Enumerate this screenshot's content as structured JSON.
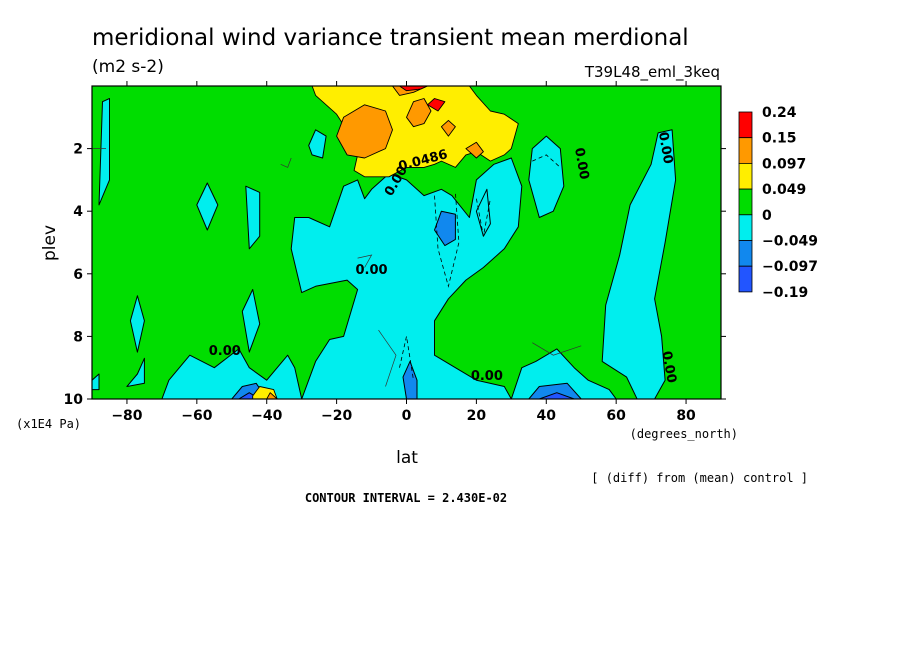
{
  "chart_data": {
    "type": "heatmap",
    "title": "meridional wind variance transient mean merdional",
    "units": "(m2 s-2)",
    "run": "T39L48_eml_3keq",
    "xlabel": "lat",
    "xunits": "(degrees_north)",
    "ylabel": "plev",
    "yunits": "(x1E4 Pa)",
    "xlim": [
      -90,
      90
    ],
    "ylim": [
      10,
      0
    ],
    "xticks": [
      -80,
      -60,
      -40,
      -20,
      0,
      20,
      40,
      60,
      80
    ],
    "xtick_labels": [
      "−80",
      "−60",
      "−40",
      "−20",
      "0",
      "20",
      "40",
      "60",
      "80"
    ],
    "yticks": [
      2,
      4,
      6,
      8,
      10
    ],
    "ytick_labels": [
      "2",
      "4",
      "6",
      "8",
      "10"
    ],
    "diff_note": "[ (diff) from (mean) control ]",
    "contour_interval": "CONTOUR INTERVAL = 2.430E-02",
    "colorbar": {
      "labels": [
        "0.24",
        "0.15",
        "0.097",
        "0.049",
        "0",
        "−0.049",
        "−0.097",
        "−0.19"
      ],
      "colors": [
        "#ff0000",
        "#ff9900",
        "#ffee00",
        "#00dd00",
        "#00eeee",
        "#1188ee",
        "#2255ff"
      ]
    },
    "colors": {
      "background_field": "#00dd00",
      "neg1": "#00eeee",
      "neg2": "#1188ee",
      "neg3": "#2255ff",
      "pos1": "#ffee00",
      "pos2": "#ff9900",
      "pos3": "#ff0000"
    },
    "contour_labels": [
      {
        "text": "0.0486",
        "lat": 5,
        "p": 2.5,
        "angle": -15
      },
      {
        "text": "0.00",
        "lat": -2,
        "p": 3.1,
        "angle": -60
      },
      {
        "text": "0.00",
        "lat": -10,
        "p": 6.0,
        "angle": 0
      },
      {
        "text": "0.00",
        "lat": -52,
        "p": 8.6,
        "angle": 0
      },
      {
        "text": "0.00",
        "lat": 23,
        "p": 9.4,
        "angle": 0
      },
      {
        "text": "0.00",
        "lat": 49,
        "p": 2.5,
        "angle": 80
      },
      {
        "text": "0.00",
        "lat": 73,
        "p": 2.0,
        "angle": 80
      },
      {
        "text": "0.00",
        "lat": 74,
        "p": 9.0,
        "angle": 80
      }
    ],
    "regions": {
      "neg1": [
        [
          [
            -88,
            3.8
          ],
          [
            -87,
            0.5
          ],
          [
            -85,
            0.4
          ],
          [
            -85,
            3.0
          ]
        ],
        [
          [
            -57,
            4.6
          ],
          [
            -60,
            3.8
          ],
          [
            -57,
            3.1
          ],
          [
            -54,
            3.8
          ]
        ],
        [
          [
            -45,
            5.2
          ],
          [
            -46,
            3.2
          ],
          [
            -42,
            3.4
          ],
          [
            -42,
            4.8
          ]
        ],
        [
          [
            -28,
            1.9
          ],
          [
            -27,
            2.2
          ],
          [
            -24,
            2.3
          ],
          [
            -23,
            1.6
          ],
          [
            -26,
            1.4
          ]
        ],
        [
          [
            -77,
            8.5
          ],
          [
            -79,
            7.5
          ],
          [
            -77,
            6.7
          ],
          [
            -75,
            7.5
          ]
        ],
        [
          [
            -45,
            8.5
          ],
          [
            -47,
            7.2
          ],
          [
            -44,
            6.5
          ],
          [
            -42,
            7.6
          ]
        ],
        [
          [
            -77,
            9.2
          ],
          [
            -75,
            8.7
          ],
          [
            -75,
            9.5
          ],
          [
            -80,
            9.6
          ]
        ],
        [
          [
            -70,
            10
          ],
          [
            -68,
            9.4
          ],
          [
            -62,
            8.6
          ],
          [
            -55,
            9.0
          ],
          [
            -48,
            8.4
          ],
          [
            -45,
            9.0
          ],
          [
            -40,
            9.4
          ],
          [
            -34,
            8.6
          ],
          [
            -32,
            9.0
          ],
          [
            -30,
            10
          ]
        ],
        [
          [
            -90,
            9.4
          ],
          [
            -88,
            9.2
          ],
          [
            -88,
            9.7
          ],
          [
            -90,
            9.7
          ]
        ],
        [
          [
            -30,
            10
          ],
          [
            -26,
            8.8
          ],
          [
            -22,
            8.1
          ],
          [
            -18,
            8.0
          ],
          [
            -14,
            6.5
          ],
          [
            -17,
            6.2
          ],
          [
            -26,
            6.4
          ],
          [
            -30,
            6.6
          ],
          [
            -33,
            5.2
          ],
          [
            -32,
            4.2
          ],
          [
            -28,
            4.2
          ],
          [
            -22,
            4.5
          ],
          [
            -18,
            3.2
          ],
          [
            -14,
            3.0
          ],
          [
            -12,
            3.6
          ],
          [
            -10,
            3.3
          ],
          [
            -5,
            2.8
          ],
          [
            0,
            3.0
          ],
          [
            5,
            3.5
          ],
          [
            10,
            3.3
          ],
          [
            13,
            3.5
          ],
          [
            18,
            4.2
          ],
          [
            20,
            3.0
          ],
          [
            25,
            2.5
          ],
          [
            30,
            2.3
          ],
          [
            33,
            3.2
          ],
          [
            32,
            4.5
          ],
          [
            28,
            5.2
          ],
          [
            22,
            5.8
          ],
          [
            17,
            6.2
          ],
          [
            12,
            6.8
          ],
          [
            8,
            7.5
          ],
          [
            8,
            8.6
          ],
          [
            14,
            9.0
          ],
          [
            20,
            9.4
          ],
          [
            28,
            9.6
          ],
          [
            30,
            10
          ]
        ],
        [
          [
            30,
            10
          ],
          [
            33,
            9.0
          ],
          [
            37,
            8.8
          ],
          [
            43,
            8.4
          ],
          [
            48,
            9.0
          ],
          [
            52,
            9.4
          ],
          [
            58,
            9.7
          ],
          [
            60,
            10
          ]
        ],
        [
          [
            35,
            3.0
          ],
          [
            36,
            2.0
          ],
          [
            40,
            1.6
          ],
          [
            44,
            2.0
          ],
          [
            45,
            3.2
          ],
          [
            42,
            4.0
          ],
          [
            38,
            4.2
          ]
        ],
        [
          [
            56,
            8.8
          ],
          [
            57,
            7.0
          ],
          [
            61,
            5.4
          ],
          [
            64,
            3.8
          ],
          [
            70,
            2.5
          ],
          [
            72,
            1.5
          ],
          [
            76,
            1.4
          ],
          [
            77,
            3.0
          ],
          [
            74,
            5.0
          ],
          [
            71,
            6.8
          ],
          [
            73,
            8.0
          ],
          [
            74,
            9.4
          ],
          [
            71,
            10
          ],
          [
            66,
            10
          ],
          [
            63,
            9.3
          ]
        ],
        [
          [
            20,
            4.0
          ],
          [
            23,
            3.3
          ],
          [
            24,
            4.4
          ],
          [
            22,
            4.8
          ]
        ]
      ],
      "neg2": [
        [
          [
            8,
            4.6
          ],
          [
            10,
            4.0
          ],
          [
            14,
            4.1
          ],
          [
            14,
            4.9
          ],
          [
            11,
            5.1
          ]
        ],
        [
          [
            0,
            10
          ],
          [
            -1,
            9.3
          ],
          [
            1,
            8.8
          ],
          [
            3,
            9.4
          ],
          [
            3,
            10
          ]
        ],
        [
          [
            -50,
            10
          ],
          [
            -47,
            9.6
          ],
          [
            -43,
            9.5
          ],
          [
            -40,
            10
          ]
        ],
        [
          [
            35,
            10
          ],
          [
            38,
            9.6
          ],
          [
            46,
            9.5
          ],
          [
            50,
            10
          ]
        ]
      ],
      "neg3": [
        [
          [
            -48,
            10
          ],
          [
            -45,
            9.8
          ],
          [
            -42,
            10
          ]
        ],
        [
          [
            38,
            10
          ],
          [
            43,
            9.8
          ],
          [
            48,
            10
          ]
        ]
      ],
      "pos1": [
        [
          [
            -27,
            0
          ],
          [
            -26,
            0.3
          ],
          [
            -20,
            0.9
          ],
          [
            -16,
            1.6
          ],
          [
            -14,
            2.2
          ],
          [
            -15,
            2.7
          ],
          [
            -12,
            2.9
          ],
          [
            -9,
            2.9
          ],
          [
            -5,
            2.9
          ],
          [
            0,
            2.6
          ],
          [
            5,
            2.6
          ],
          [
            8,
            2.5
          ],
          [
            10,
            2.4
          ],
          [
            14,
            2.6
          ],
          [
            17,
            2.2
          ],
          [
            20,
            2.1
          ],
          [
            24,
            2.4
          ],
          [
            28,
            2.2
          ],
          [
            30,
            2.0
          ],
          [
            32,
            1.2
          ],
          [
            28,
            0.9
          ],
          [
            24,
            0.8
          ],
          [
            20,
            0.3
          ],
          [
            18,
            0
          ]
        ],
        [
          [
            -44,
            9.9
          ],
          [
            -42,
            9.6
          ],
          [
            -38,
            9.7
          ],
          [
            -37,
            10
          ],
          [
            -44,
            10
          ]
        ]
      ],
      "pos2": [
        [
          [
            -20,
            1.6
          ],
          [
            -18,
            1.0
          ],
          [
            -12,
            0.6
          ],
          [
            -6,
            0.8
          ],
          [
            -4,
            1.4
          ],
          [
            -6,
            2.0
          ],
          [
            -12,
            2.3
          ],
          [
            -17,
            2.2
          ]
        ],
        [
          [
            0,
            1.0
          ],
          [
            2,
            0.5
          ],
          [
            5,
            0.4
          ],
          [
            7,
            0.8
          ],
          [
            5,
            1.2
          ],
          [
            2,
            1.3
          ]
        ],
        [
          [
            10,
            1.3
          ],
          [
            12,
            1.1
          ],
          [
            14,
            1.3
          ],
          [
            12,
            1.6
          ]
        ],
        [
          [
            17,
            2.0
          ],
          [
            20,
            1.8
          ],
          [
            22,
            2.1
          ],
          [
            20,
            2.3
          ]
        ],
        [
          [
            -40,
            10
          ],
          [
            -39,
            9.8
          ],
          [
            -37,
            10
          ]
        ],
        [
          [
            -4,
            0
          ],
          [
            -2,
            0.3
          ],
          [
            2,
            0.2
          ],
          [
            6,
            0.0
          ]
        ]
      ],
      "pos3": [
        [
          [
            6,
            0.6
          ],
          [
            8,
            0.4
          ],
          [
            11,
            0.5
          ],
          [
            9,
            0.8
          ]
        ],
        [
          [
            -2,
            0
          ],
          [
            0,
            0.15
          ],
          [
            4,
            0.1
          ],
          [
            6,
            0
          ]
        ]
      ]
    },
    "dashed_contours": [
      [
        [
          8,
          3.5
        ],
        [
          9,
          5.2
        ],
        [
          12,
          6.4
        ],
        [
          15,
          5.0
        ],
        [
          14,
          3.4
        ]
      ],
      [
        [
          20,
          3.6
        ],
        [
          22,
          4.8
        ],
        [
          24,
          3.6
        ]
      ],
      [
        [
          36,
          2.4
        ],
        [
          40,
          2.2
        ],
        [
          44,
          2.6
        ]
      ],
      [
        [
          -2,
          9.0
        ],
        [
          0,
          8.0
        ],
        [
          2,
          9.4
        ]
      ]
    ],
    "positive_thin_contours": [
      [
        [
          -36,
          2.5
        ],
        [
          -34,
          2.6
        ],
        [
          -33,
          2.3
        ]
      ],
      [
        [
          -14,
          5.5
        ],
        [
          -10,
          5.4
        ],
        [
          -12,
          5.8
        ]
      ],
      [
        [
          -8,
          7.8
        ],
        [
          -3,
          8.6
        ],
        [
          -6,
          9.6
        ]
      ],
      [
        [
          36,
          8.2
        ],
        [
          42,
          8.6
        ],
        [
          50,
          8.3
        ]
      ],
      [
        [
          -92,
          2.0
        ],
        [
          -86,
          2.0
        ]
      ]
    ]
  }
}
